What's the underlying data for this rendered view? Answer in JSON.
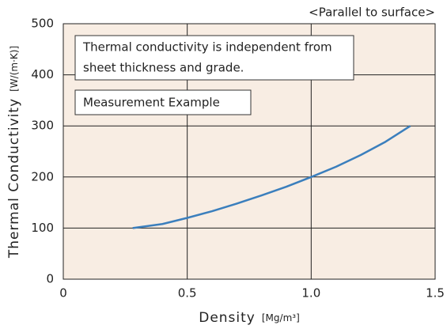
{
  "chart_data": {
    "type": "line",
    "title": "<Parallel to surface>",
    "note_lines": [
      "Thermal conductivity is independent from",
      "sheet thickness and grade."
    ],
    "annotation": "Measurement Example",
    "xlabel": "Density",
    "xlabel_unit": "[Mg/m³]",
    "ylabel": "Thermal Conductivity",
    "ylabel_unit": "[W/(m·K)]",
    "x": [
      0.28,
      0.4,
      0.5,
      0.6,
      0.7,
      0.8,
      0.9,
      1.0,
      1.1,
      1.2,
      1.3,
      1.4
    ],
    "series": [
      {
        "name": "Measurement Example",
        "color": "#3b7fbd",
        "values": [
          100,
          108,
          120,
          133,
          148,
          164,
          181,
          200,
          220,
          243,
          269,
          300
        ]
      }
    ],
    "xlim": [
      0,
      1.5
    ],
    "xticks": [
      0,
      0.5,
      {
        "value": 1,
        "label": "1.0"
      },
      1.5
    ],
    "ylim": [
      0,
      500
    ],
    "yticks": [
      0,
      100,
      200,
      300,
      400,
      500
    ],
    "grid": true,
    "background": "#f8ede3"
  }
}
